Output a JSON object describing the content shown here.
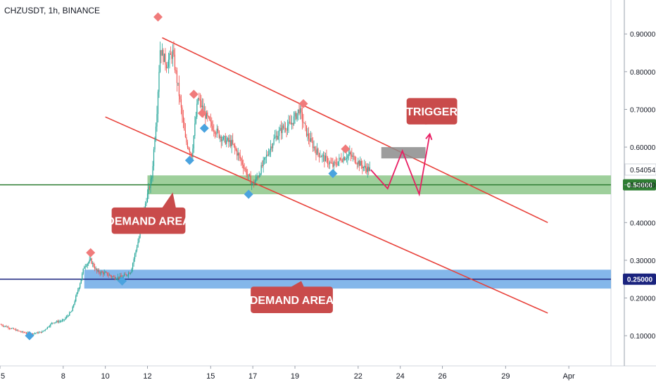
{
  "header": {
    "symbol_line": "CHZUSDT, 1h, BINANCE"
  },
  "colors": {
    "up": "#26a69a",
    "down": "#ef5350",
    "channel": "#e8413a",
    "green_zone": "#7dbf7a",
    "blue_zone": "#5b9fe3",
    "green_line": "#2e7d32",
    "blue_line": "#1a237e",
    "projection": "#e91e63",
    "trigger_box": "#8c8c8c",
    "callout": "#c94b4b",
    "marker_up": "#f07b7b",
    "marker_down": "#4aa3df"
  },
  "chart_data": {
    "type": "candlestick",
    "title": "CHZUSDT, 1h, BINANCE",
    "x_unit": "day of month (March)",
    "x_ticks": [
      {
        "x": 5,
        "label": "5"
      },
      {
        "x": 8,
        "label": "8"
      },
      {
        "x": 10,
        "label": "10"
      },
      {
        "x": 12,
        "label": "12"
      },
      {
        "x": 15,
        "label": "15"
      },
      {
        "x": 17,
        "label": "17"
      },
      {
        "x": 19,
        "label": "19"
      },
      {
        "x": 22,
        "label": "22"
      },
      {
        "x": 24,
        "label": "24"
      },
      {
        "x": 26,
        "label": "26"
      },
      {
        "x": 29,
        "label": "29"
      },
      {
        "x": 32,
        "label": "Apr"
      }
    ],
    "xlim": [
      5.0,
      34.0
    ],
    "y_ticks": [
      0.1,
      0.2,
      0.3,
      0.4,
      0.5,
      0.6,
      0.7,
      0.8,
      0.9
    ],
    "y_tick_labels": [
      "0.10000",
      "0.20000",
      "0.30000",
      "0.40000",
      "0.50000",
      "0.60000",
      "0.70000",
      "0.80000",
      "0.90000"
    ],
    "ylim": [
      0.02,
      0.99
    ],
    "last_price": {
      "value": 0.54054,
      "label": "0.54054"
    },
    "price_path": [
      [
        5.0,
        0.13
      ],
      [
        5.5,
        0.12
      ],
      [
        6.0,
        0.11
      ],
      [
        6.5,
        0.105
      ],
      [
        7.0,
        0.11
      ],
      [
        7.5,
        0.135
      ],
      [
        8.0,
        0.14
      ],
      [
        8.4,
        0.165
      ],
      [
        8.8,
        0.24
      ],
      [
        9.0,
        0.285
      ],
      [
        9.3,
        0.3
      ],
      [
        9.6,
        0.27
      ],
      [
        10.0,
        0.265
      ],
      [
        10.4,
        0.255
      ],
      [
        10.8,
        0.255
      ],
      [
        11.2,
        0.27
      ],
      [
        11.6,
        0.36
      ],
      [
        11.9,
        0.45
      ],
      [
        12.2,
        0.52
      ],
      [
        12.45,
        0.7
      ],
      [
        12.6,
        0.86
      ],
      [
        12.9,
        0.82
      ],
      [
        13.2,
        0.85
      ],
      [
        13.5,
        0.74
      ],
      [
        13.8,
        0.62
      ],
      [
        14.1,
        0.58
      ],
      [
        14.4,
        0.73
      ],
      [
        14.7,
        0.69
      ],
      [
        15.0,
        0.66
      ],
      [
        15.3,
        0.64
      ],
      [
        15.6,
        0.62
      ],
      [
        16.0,
        0.61
      ],
      [
        16.4,
        0.57
      ],
      [
        16.8,
        0.52
      ],
      [
        17.0,
        0.5
      ],
      [
        17.3,
        0.53
      ],
      [
        17.6,
        0.57
      ],
      [
        18.0,
        0.62
      ],
      [
        18.4,
        0.65
      ],
      [
        18.8,
        0.66
      ],
      [
        19.2,
        0.7
      ],
      [
        19.6,
        0.63
      ],
      [
        20.0,
        0.59
      ],
      [
        20.4,
        0.57
      ],
      [
        20.8,
        0.55
      ],
      [
        21.2,
        0.57
      ],
      [
        21.6,
        0.58
      ],
      [
        22.0,
        0.56
      ],
      [
        22.3,
        0.545
      ],
      [
        22.6,
        0.54
      ]
    ],
    "channel_upper": [
      [
        12.7,
        0.89
      ],
      [
        31.0,
        0.4
      ]
    ],
    "channel_lower": [
      [
        10.0,
        0.68
      ],
      [
        31.0,
        0.16
      ]
    ],
    "zones": [
      {
        "name": "green",
        "x0": 12.0,
        "x1": 34.0,
        "y0": 0.475,
        "y1": 0.525
      },
      {
        "name": "blue",
        "x0": 9.0,
        "x1": 34.0,
        "y0": 0.225,
        "y1": 0.275
      }
    ],
    "horizontal_lines": [
      {
        "name": "green",
        "y": 0.5,
        "label": "0.50000"
      },
      {
        "name": "blue",
        "y": 0.25,
        "label": "0.25000"
      }
    ],
    "trigger_box": {
      "x0": 23.1,
      "x1": 25.2,
      "y0": 0.57,
      "y1": 0.6
    },
    "projection_path": [
      [
        22.6,
        0.54
      ],
      [
        23.4,
        0.49
      ],
      [
        24.1,
        0.59
      ],
      [
        24.9,
        0.475
      ],
      [
        25.4,
        0.635
      ]
    ],
    "markers_up": [
      [
        12.5,
        0.945
      ],
      [
        9.3,
        0.32
      ],
      [
        14.2,
        0.74
      ],
      [
        14.6,
        0.69
      ],
      [
        19.4,
        0.715
      ],
      [
        21.4,
        0.595
      ]
    ],
    "markers_down": [
      [
        6.4,
        0.1
      ],
      [
        10.8,
        0.245
      ],
      [
        14.0,
        0.565
      ],
      [
        14.7,
        0.65
      ],
      [
        16.8,
        0.475
      ],
      [
        20.8,
        0.53
      ]
    ],
    "annotations": [
      {
        "text": "TRIGGER",
        "box": [
          24.3,
          0.73,
          26.7,
          0.66
        ],
        "pointer": [
          25.2,
          0.66
        ],
        "arrow": "down-left"
      },
      {
        "text": "DEMAND AREA",
        "box": [
          10.3,
          0.44,
          13.8,
          0.37
        ],
        "pointer": [
          13.2,
          0.48
        ],
        "arrow": "up-right"
      },
      {
        "text": "DEMAND AREA",
        "box": [
          16.9,
          0.23,
          20.8,
          0.16
        ],
        "pointer": [
          19.3,
          0.245
        ],
        "arrow": "up"
      }
    ]
  }
}
